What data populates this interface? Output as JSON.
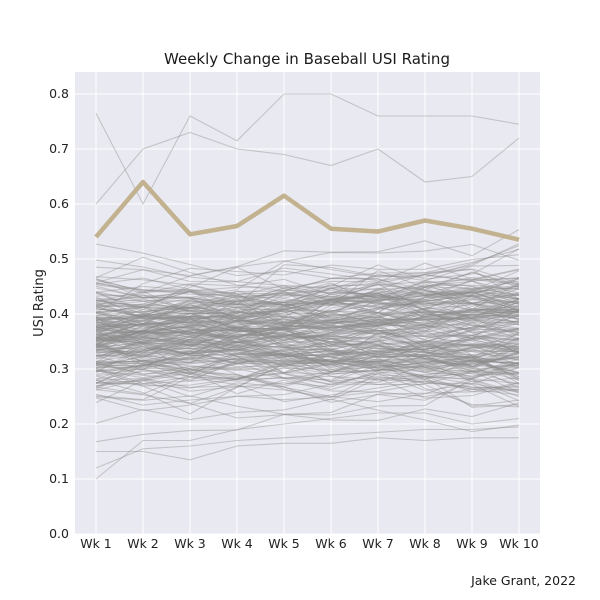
{
  "chart_data": {
    "type": "line",
    "title": "Weekly Change in Baseball USI Rating",
    "xlabel": "",
    "ylabel": "USI Rating",
    "categories": [
      "Wk 1",
      "Wk 2",
      "Wk 3",
      "Wk 4",
      "Wk 5",
      "Wk 6",
      "Wk 7",
      "Wk 8",
      "Wk 9",
      "Wk 10"
    ],
    "ylim": [
      0.0,
      0.84
    ],
    "yticks": [
      "0.0",
      "0.1",
      "0.2",
      "0.3",
      "0.4",
      "0.5",
      "0.6",
      "0.7",
      "0.8"
    ],
    "grid": true,
    "legend": "none",
    "colors": {
      "background": "#e9e9f1",
      "grid": "#ffffff",
      "gray_series": "#8c8c8c",
      "highlight": "#c2b28f"
    },
    "highlight_series": {
      "values": [
        0.54,
        0.64,
        0.545,
        0.56,
        0.615,
        0.555,
        0.55,
        0.57,
        0.555,
        0.535
      ]
    },
    "gray_series_count": 230,
    "gray_series_sample": [
      [
        0.765,
        0.6,
        0.76,
        0.715,
        0.8,
        0.8,
        0.76,
        0.76,
        0.76,
        0.745
      ],
      [
        0.6,
        0.7,
        0.73,
        0.7,
        0.69,
        0.67,
        0.7,
        0.64,
        0.65,
        0.72
      ],
      [
        0.1,
        0.17,
        0.17,
        0.19,
        0.2,
        0.21,
        0.22,
        0.22,
        0.2,
        0.21
      ],
      [
        0.15,
        0.15,
        0.135,
        0.16,
        0.165,
        0.165,
        0.175,
        0.17,
        0.175,
        0.175
      ],
      [
        0.12,
        0.155,
        0.16,
        0.17,
        0.175,
        0.18,
        0.185,
        0.19,
        0.19,
        0.195
      ]
    ],
    "credit": "Jake Grant, 2022"
  }
}
